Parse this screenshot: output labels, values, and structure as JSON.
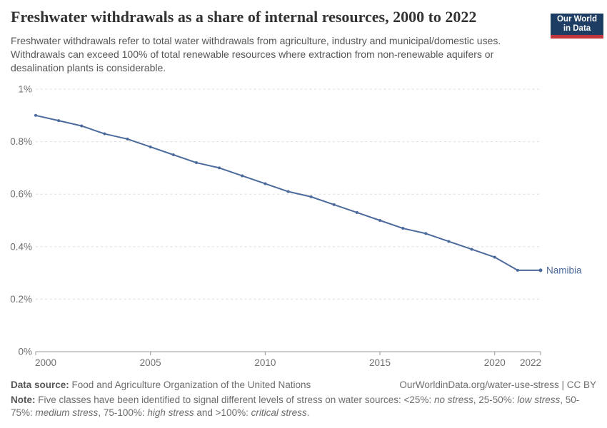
{
  "header": {
    "title": "Freshwater withdrawals as a share of internal resources, 2000 to 2022",
    "subtitle": "Freshwater withdrawals refer to total water withdrawals from agriculture, industry and municipal/domestic uses. Withdrawals can exceed 100% of total renewable resources where extraction from non-renewable aquifers or desalination plants is considerable.",
    "logo": {
      "line1": "Our World",
      "line2": "in Data",
      "bg_color": "#1d3d63",
      "accent_color": "#c0363c"
    }
  },
  "chart_data": {
    "type": "line",
    "title": "Freshwater withdrawals as a share of internal resources, 2000 to 2022",
    "xlabel": "",
    "ylabel": "",
    "unit": "%",
    "xlim": [
      2000,
      2022
    ],
    "ylim": [
      0,
      1
    ],
    "x_ticks": [
      2000,
      2005,
      2010,
      2015,
      2020,
      2022
    ],
    "y_ticks": [
      0,
      0.2,
      0.4,
      0.6,
      0.8,
      1
    ],
    "y_tick_labels": [
      "0%",
      "0.2%",
      "0.4%",
      "0.6%",
      "0.8%",
      "1%"
    ],
    "grid": "horizontal-dashed",
    "legend": "end-of-line-label",
    "x": [
      2000,
      2001,
      2002,
      2003,
      2004,
      2005,
      2006,
      2007,
      2008,
      2009,
      2010,
      2011,
      2012,
      2013,
      2014,
      2015,
      2016,
      2017,
      2018,
      2019,
      2020,
      2021,
      2022
    ],
    "series": [
      {
        "name": "Namibia",
        "color": "#4C6A9C",
        "values": [
          0.9,
          0.88,
          0.86,
          0.83,
          0.81,
          0.78,
          0.75,
          0.72,
          0.7,
          0.67,
          0.64,
          0.61,
          0.59,
          0.56,
          0.53,
          0.5,
          0.47,
          0.45,
          0.42,
          0.39,
          0.36,
          0.31,
          0.31
        ]
      }
    ]
  },
  "footer": {
    "source_label": "Data source:",
    "source_text": "Food and Agriculture Organization of the United Nations",
    "attribution": "OurWorldinData.org/water-use-stress | CC BY",
    "note_segments": [
      {
        "t": "Note:",
        "b": 1
      },
      {
        "t": " Five classes have been identified to signal different levels of stress on water sources: <25%: "
      },
      {
        "t": "no stress",
        "i": 1
      },
      {
        "t": ", 25-50%: "
      },
      {
        "t": "low stress",
        "i": 1
      },
      {
        "t": ", 50-75%: "
      },
      {
        "t": "medium stress",
        "i": 1
      },
      {
        "t": ", 75-100%: "
      },
      {
        "t": "high stress",
        "i": 1
      },
      {
        "t": " and >100%: "
      },
      {
        "t": "critical stress",
        "i": 1
      },
      {
        "t": "."
      }
    ]
  }
}
